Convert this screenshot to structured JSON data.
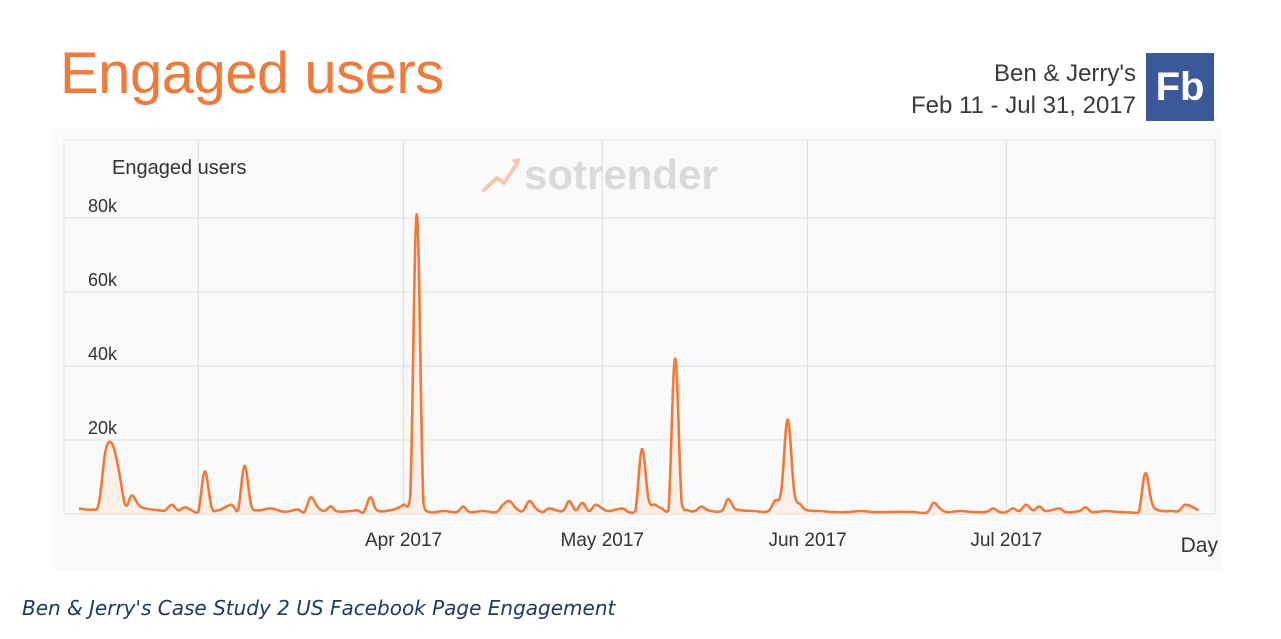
{
  "header": {
    "title": "Engaged users",
    "brand": "Ben & Jerry's",
    "date_range": "Feb 11 - Jul 31, 2017",
    "logo_text": "Fb"
  },
  "watermark": "sotrender",
  "caption": "Ben & Jerry's Case Study 2 US Facebook Page Engagement",
  "colors": {
    "line": "#ee7a3c",
    "title": "#ee7a3c",
    "logo": "#3b5998",
    "caption": "#1f3864"
  },
  "chart_data": {
    "type": "line",
    "title": "Engaged users",
    "ylabel": "Engaged users",
    "xlabel": "Day",
    "ylim": [
      0,
      80000
    ],
    "yticks": [
      {
        "value": 20000,
        "label": "20k"
      },
      {
        "value": 40000,
        "label": "40k"
      },
      {
        "value": 60000,
        "label": "60k"
      },
      {
        "value": 80000,
        "label": "80k"
      }
    ],
    "xlim": [
      "2017-02-11",
      "2017-07-31"
    ],
    "xticks": [
      {
        "date": "2017-03-01",
        "label": ""
      },
      {
        "date": "2017-04-01",
        "label": "Apr 2017"
      },
      {
        "date": "2017-05-01",
        "label": "May 2017"
      },
      {
        "date": "2017-06-01",
        "label": "Jun 2017"
      },
      {
        "date": "2017-07-01",
        "label": "Jul 2017"
      }
    ],
    "grid": true,
    "series": [
      {
        "points": [
          [
            "2017-02-11",
            1500
          ],
          [
            "2017-02-13",
            1200
          ],
          [
            "2017-02-14",
            3000
          ],
          [
            "2017-02-15",
            17000
          ],
          [
            "2017-02-16",
            19000
          ],
          [
            "2017-02-17",
            12000
          ],
          [
            "2017-02-18",
            2500
          ],
          [
            "2017-02-19",
            5000
          ],
          [
            "2017-02-20",
            2500
          ],
          [
            "2017-02-21",
            1500
          ],
          [
            "2017-02-23",
            1000
          ],
          [
            "2017-02-24",
            1000
          ],
          [
            "2017-02-25",
            2500
          ],
          [
            "2017-02-26",
            1000
          ],
          [
            "2017-02-27",
            1800
          ],
          [
            "2017-02-28",
            1000
          ],
          [
            "2017-03-01",
            500
          ],
          [
            "2017-03-02",
            11500
          ],
          [
            "2017-03-03",
            2000
          ],
          [
            "2017-03-04",
            1000
          ],
          [
            "2017-03-06",
            2500
          ],
          [
            "2017-03-07",
            1000
          ],
          [
            "2017-03-08",
            13000
          ],
          [
            "2017-03-09",
            2500
          ],
          [
            "2017-03-10",
            1000
          ],
          [
            "2017-03-12",
            1500
          ],
          [
            "2017-03-14",
            600
          ],
          [
            "2017-03-16",
            1200
          ],
          [
            "2017-03-17",
            500
          ],
          [
            "2017-03-18",
            4500
          ],
          [
            "2017-03-19",
            2000
          ],
          [
            "2017-03-20",
            800
          ],
          [
            "2017-03-21",
            2000
          ],
          [
            "2017-03-22",
            700
          ],
          [
            "2017-03-24",
            800
          ],
          [
            "2017-03-25",
            1000
          ],
          [
            "2017-03-26",
            500
          ],
          [
            "2017-03-27",
            4500
          ],
          [
            "2017-03-28",
            1000
          ],
          [
            "2017-03-30",
            1000
          ],
          [
            "2017-03-31",
            1500
          ],
          [
            "2017-04-01",
            2500
          ],
          [
            "2017-04-02",
            4500
          ],
          [
            "2017-04-03",
            81000
          ],
          [
            "2017-04-04",
            3000
          ],
          [
            "2017-04-05",
            500
          ],
          [
            "2017-04-07",
            800
          ],
          [
            "2017-04-09",
            500
          ],
          [
            "2017-04-10",
            2000
          ],
          [
            "2017-04-11",
            500
          ],
          [
            "2017-04-13",
            800
          ],
          [
            "2017-04-15",
            500
          ],
          [
            "2017-04-16",
            2500
          ],
          [
            "2017-04-17",
            3500
          ],
          [
            "2017-04-18",
            1500
          ],
          [
            "2017-04-19",
            800
          ],
          [
            "2017-04-20",
            3500
          ],
          [
            "2017-04-21",
            1500
          ],
          [
            "2017-04-22",
            500
          ],
          [
            "2017-04-23",
            1500
          ],
          [
            "2017-04-25",
            800
          ],
          [
            "2017-04-26",
            3500
          ],
          [
            "2017-04-27",
            1000
          ],
          [
            "2017-04-28",
            3000
          ],
          [
            "2017-04-29",
            800
          ],
          [
            "2017-04-30",
            2500
          ],
          [
            "2017-05-01",
            1500
          ],
          [
            "2017-05-02",
            800
          ],
          [
            "2017-05-04",
            1500
          ],
          [
            "2017-05-05",
            500
          ],
          [
            "2017-05-06",
            800
          ],
          [
            "2017-05-07",
            17500
          ],
          [
            "2017-05-08",
            4000
          ],
          [
            "2017-05-09",
            2500
          ],
          [
            "2017-05-10",
            1500
          ],
          [
            "2017-05-11",
            1000
          ],
          [
            "2017-05-12",
            42000
          ],
          [
            "2017-05-13",
            3000
          ],
          [
            "2017-05-14",
            1000
          ],
          [
            "2017-05-15",
            800
          ],
          [
            "2017-05-16",
            2000
          ],
          [
            "2017-05-17",
            1000
          ],
          [
            "2017-05-19",
            800
          ],
          [
            "2017-05-20",
            4000
          ],
          [
            "2017-05-21",
            1500
          ],
          [
            "2017-05-22",
            1000
          ],
          [
            "2017-05-24",
            800
          ],
          [
            "2017-05-26",
            700
          ],
          [
            "2017-05-27",
            3500
          ],
          [
            "2017-05-28",
            6000
          ],
          [
            "2017-05-29",
            25500
          ],
          [
            "2017-05-30",
            6000
          ],
          [
            "2017-05-31",
            2500
          ],
          [
            "2017-06-01",
            1000
          ],
          [
            "2017-06-03",
            800
          ],
          [
            "2017-06-05",
            500
          ],
          [
            "2017-06-07",
            500
          ],
          [
            "2017-06-09",
            800
          ],
          [
            "2017-06-11",
            500
          ],
          [
            "2017-06-13",
            500
          ],
          [
            "2017-06-15",
            600
          ],
          [
            "2017-06-17",
            500
          ],
          [
            "2017-06-19",
            400
          ],
          [
            "2017-06-20",
            3000
          ],
          [
            "2017-06-21",
            1500
          ],
          [
            "2017-06-22",
            500
          ],
          [
            "2017-06-24",
            800
          ],
          [
            "2017-06-26",
            500
          ],
          [
            "2017-06-28",
            600
          ],
          [
            "2017-06-29",
            1500
          ],
          [
            "2017-06-30",
            500
          ],
          [
            "2017-07-01",
            500
          ],
          [
            "2017-07-02",
            1500
          ],
          [
            "2017-07-03",
            800
          ],
          [
            "2017-07-04",
            2500
          ],
          [
            "2017-07-05",
            1000
          ],
          [
            "2017-07-06",
            2000
          ],
          [
            "2017-07-07",
            800
          ],
          [
            "2017-07-09",
            1500
          ],
          [
            "2017-07-10",
            500
          ],
          [
            "2017-07-12",
            800
          ],
          [
            "2017-07-13",
            1800
          ],
          [
            "2017-07-14",
            500
          ],
          [
            "2017-07-16",
            800
          ],
          [
            "2017-07-18",
            500
          ],
          [
            "2017-07-20",
            400
          ],
          [
            "2017-07-21",
            500
          ],
          [
            "2017-07-22",
            11000
          ],
          [
            "2017-07-23",
            3000
          ],
          [
            "2017-07-24",
            1000
          ],
          [
            "2017-07-26",
            800
          ],
          [
            "2017-07-27",
            800
          ],
          [
            "2017-07-28",
            2500
          ],
          [
            "2017-07-29",
            2000
          ],
          [
            "2017-07-30",
            1000
          ]
        ]
      }
    ]
  }
}
